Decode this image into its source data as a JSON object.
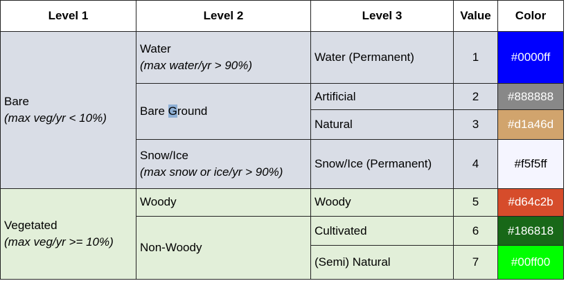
{
  "headers": [
    "Level 1",
    "Level 2",
    "Level 3",
    "Value",
    "Color"
  ],
  "groups": [
    {
      "level1": "Bare",
      "level1_note": "(max veg/yr < 10%)",
      "level2": [
        {
          "label": "Water",
          "note": "(max water/yr > 90%)",
          "level3": [
            {
              "label": "Water (Permanent)",
              "value": "1",
              "color": "#0000ff",
              "text_color": "#ffffff"
            }
          ]
        },
        {
          "label_before": "Bare ",
          "label_highlight": "G",
          "label_after": "round",
          "level3": [
            {
              "label": "Artificial",
              "value": "2",
              "color": "#888888",
              "text_color": "#ffffff"
            },
            {
              "label": "Natural",
              "value": "3",
              "color": "#d1a46d",
              "text_color": "#ffffff"
            }
          ]
        },
        {
          "label": "Snow/Ice",
          "note": "(max snow or ice/yr > 90%)",
          "level3": [
            {
              "label": "Snow/Ice (Permanent)",
              "value": "4",
              "color": "#f5f5ff",
              "text_color": "#000000"
            }
          ]
        }
      ]
    },
    {
      "level1": "Vegetated",
      "level1_note": "(max veg/yr >= 10%)",
      "level2": [
        {
          "label": "Woody",
          "level3": [
            {
              "label": "Woody",
              "value": "5",
              "color": "#d64c2b",
              "text_color": "#ffffff"
            }
          ]
        },
        {
          "label": "Non-Woody",
          "level3": [
            {
              "label": "Cultivated",
              "value": "6",
              "color": "#186818",
              "text_color": "#ffffff"
            },
            {
              "label": "(Semi) Natural",
              "value": "7",
              "color": "#00ff00",
              "text_color": "#ffffff"
            }
          ]
        }
      ]
    }
  ]
}
